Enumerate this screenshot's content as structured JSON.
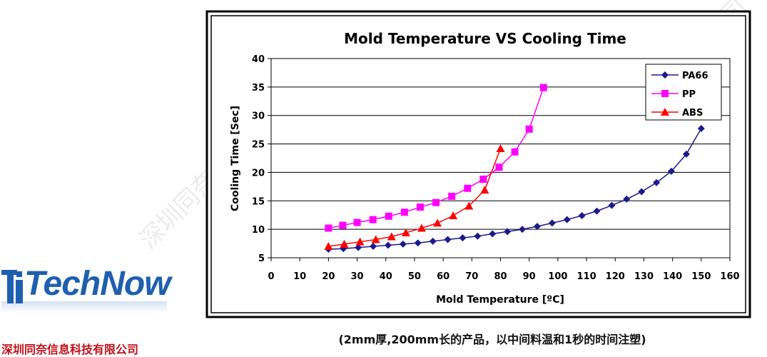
{
  "brand": {
    "logo_text": "TechNow",
    "company_name": "深圳同奈信息科技有限公司"
  },
  "caption": "(2mm厚,200mm长的产品，以中间料温和1秒的时间注塑)",
  "watermark": "深圳同奈信息科技有限公司",
  "chart_data": {
    "type": "line",
    "title": "Mold Temperature VS Cooling Time",
    "xlabel": "Mold Temperature [ºC]",
    "ylabel": "Cooling Time [Sec]",
    "xlim": [
      0,
      160
    ],
    "ylim": [
      5,
      40
    ],
    "xticks": [
      0,
      10,
      20,
      30,
      40,
      50,
      60,
      70,
      80,
      90,
      100,
      110,
      120,
      130,
      140,
      150,
      160
    ],
    "yticks": [
      5,
      10,
      15,
      20,
      25,
      30,
      35,
      40
    ],
    "grid": "horizontal",
    "legend_position": "top-right",
    "series": [
      {
        "name": "PA66",
        "color": "#1a1a8c",
        "marker": "diamond",
        "x": [
          20,
          25.2,
          30.4,
          35.6,
          40.8,
          46,
          51.2,
          56.4,
          61.6,
          66.8,
          72,
          77.2,
          82.4,
          87.6,
          92.8,
          98,
          103.2,
          108.4,
          113.6,
          118.8,
          124,
          129.2,
          134.4,
          139.6,
          144.8,
          150
        ],
        "y": [
          6.5,
          6.6,
          6.8,
          7.0,
          7.2,
          7.4,
          7.6,
          7.9,
          8.2,
          8.5,
          8.8,
          9.2,
          9.6,
          10.0,
          10.5,
          11.1,
          11.7,
          12.4,
          13.2,
          14.2,
          15.3,
          16.6,
          18.2,
          20.2,
          23.2,
          27.7
        ]
      },
      {
        "name": "PP",
        "color": "#ff00ff",
        "marker": "square",
        "x": [
          20,
          25,
          30,
          35.5,
          41,
          46.5,
          52,
          57.5,
          63,
          68.5,
          74,
          79.5,
          85,
          90,
          95
        ],
        "y": [
          10.2,
          10.7,
          11.2,
          11.7,
          12.3,
          13.0,
          13.9,
          14.7,
          15.8,
          17.2,
          18.8,
          20.9,
          23.6,
          27.6,
          34.9
        ]
      },
      {
        "name": "ABS",
        "color": "#ff0000",
        "marker": "triangle",
        "x": [
          20,
          25.5,
          31,
          36.5,
          42,
          47,
          52.5,
          58,
          63.5,
          69,
          74.5,
          80
        ],
        "y": [
          7.0,
          7.4,
          7.8,
          8.2,
          8.7,
          9.4,
          10.2,
          11.1,
          12.4,
          14.1,
          16.9,
          24.2
        ]
      }
    ]
  }
}
